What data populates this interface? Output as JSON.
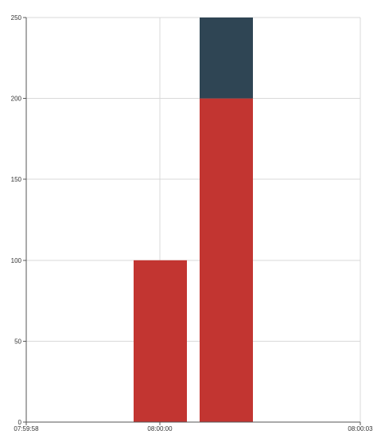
{
  "chart_data": {
    "type": "bar",
    "stacked": true,
    "x_axis": {
      "type": "time",
      "ticks": [
        "07:59:58",
        "08:00:00",
        "08:00:03"
      ],
      "grid": true
    },
    "y_axis": {
      "ylim": [
        0,
        250
      ],
      "ticks": [
        "0",
        "50",
        "100",
        "150",
        "200",
        "250"
      ],
      "grid": true
    },
    "categories": [
      "08:00:00",
      "08:00:01"
    ],
    "series": [
      {
        "color": "#c23531",
        "values": [
          100,
          200
        ]
      },
      {
        "color": "#2f4554",
        "values": [
          0,
          50
        ]
      }
    ],
    "legend": "none"
  }
}
